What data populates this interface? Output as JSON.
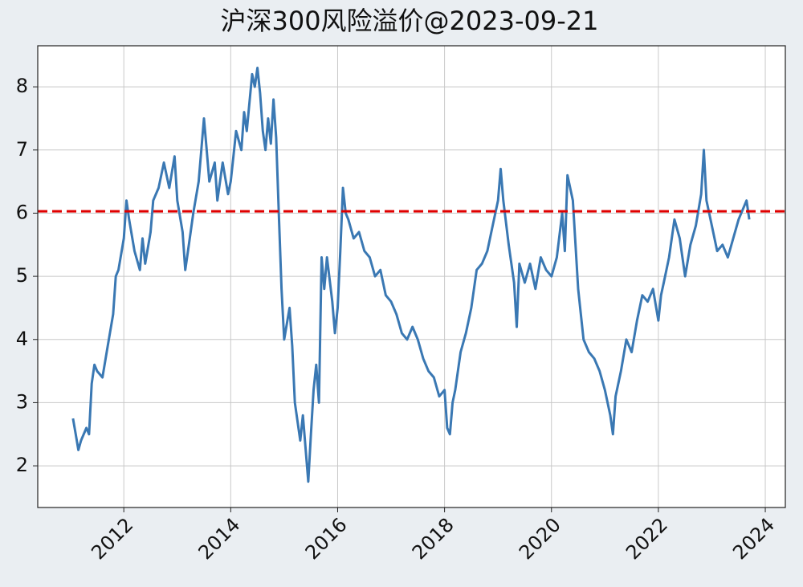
{
  "chart_data": {
    "type": "line",
    "title": "沪深300风险溢价@2023-09-21",
    "x": [
      2011.05,
      2011.1,
      2011.15,
      2011.2,
      2011.3,
      2011.35,
      2011.4,
      2011.45,
      2011.5,
      2011.6,
      2011.7,
      2011.8,
      2011.85,
      2011.9,
      2012.0,
      2012.05,
      2012.1,
      2012.2,
      2012.3,
      2012.35,
      2012.4,
      2012.5,
      2012.55,
      2012.65,
      2012.75,
      2012.85,
      2012.95,
      2013.0,
      2013.1,
      2013.15,
      2013.2,
      2013.3,
      2013.4,
      2013.5,
      2013.55,
      2013.6,
      2013.7,
      2013.75,
      2013.85,
      2013.95,
      2014.0,
      2014.05,
      2014.1,
      2014.2,
      2014.25,
      2014.3,
      2014.4,
      2014.45,
      2014.5,
      2014.55,
      2014.6,
      2014.65,
      2014.7,
      2014.75,
      2014.8,
      2014.85,
      2014.9,
      2014.95,
      2015.0,
      2015.1,
      2015.15,
      2015.2,
      2015.3,
      2015.35,
      2015.45,
      2015.5,
      2015.55,
      2015.6,
      2015.65,
      2015.7,
      2015.75,
      2015.8,
      2015.9,
      2015.95,
      2016.0,
      2016.05,
      2016.1,
      2016.15,
      2016.2,
      2016.3,
      2016.4,
      2016.5,
      2016.6,
      2016.7,
      2016.8,
      2016.9,
      2017.0,
      2017.1,
      2017.2,
      2017.3,
      2017.4,
      2017.5,
      2017.6,
      2017.7,
      2017.8,
      2017.9,
      2018.0,
      2018.05,
      2018.1,
      2018.15,
      2018.2,
      2018.3,
      2018.4,
      2018.5,
      2018.6,
      2018.7,
      2018.8,
      2018.9,
      2019.0,
      2019.05,
      2019.1,
      2019.2,
      2019.3,
      2019.35,
      2019.4,
      2019.5,
      2019.6,
      2019.7,
      2019.8,
      2019.9,
      2020.0,
      2020.1,
      2020.2,
      2020.25,
      2020.3,
      2020.4,
      2020.45,
      2020.5,
      2020.6,
      2020.7,
      2020.8,
      2020.9,
      2021.0,
      2021.1,
      2021.15,
      2021.2,
      2021.3,
      2021.4,
      2021.5,
      2021.6,
      2021.7,
      2021.8,
      2021.9,
      2022.0,
      2022.05,
      2022.1,
      2022.2,
      2022.3,
      2022.4,
      2022.5,
      2022.6,
      2022.7,
      2022.8,
      2022.85,
      2022.9,
      2023.0,
      2023.1,
      2023.2,
      2023.3,
      2023.4,
      2023.5,
      2023.6,
      2023.65,
      2023.7
    ],
    "series": [
      {
        "color": "#3a78b3",
        "values": [
          2.75,
          2.5,
          2.25,
          2.4,
          2.6,
          2.5,
          3.3,
          3.6,
          3.5,
          3.4,
          3.9,
          4.4,
          5.0,
          5.1,
          5.6,
          6.2,
          5.9,
          5.4,
          5.1,
          5.6,
          5.2,
          5.7,
          6.2,
          6.4,
          6.8,
          6.4,
          6.9,
          6.2,
          5.7,
          5.1,
          5.4,
          6.0,
          6.5,
          7.5,
          7.0,
          6.5,
          6.8,
          6.2,
          6.8,
          6.3,
          6.5,
          6.9,
          7.3,
          7.0,
          7.6,
          7.3,
          8.2,
          8.0,
          8.3,
          7.9,
          7.3,
          7.0,
          7.5,
          7.1,
          7.8,
          7.2,
          6.0,
          4.8,
          4.0,
          4.5,
          3.9,
          3.0,
          2.4,
          2.8,
          1.75,
          2.5,
          3.2,
          3.6,
          3.0,
          5.3,
          4.8,
          5.3,
          4.6,
          4.1,
          4.5,
          5.4,
          6.4,
          6.0,
          5.9,
          5.6,
          5.7,
          5.4,
          5.3,
          5.0,
          5.1,
          4.7,
          4.6,
          4.4,
          4.1,
          4.0,
          4.2,
          4.0,
          3.7,
          3.5,
          3.4,
          3.1,
          3.2,
          2.6,
          2.5,
          3.0,
          3.2,
          3.8,
          4.1,
          4.5,
          5.1,
          5.2,
          5.4,
          5.8,
          6.2,
          6.7,
          6.2,
          5.5,
          4.9,
          4.2,
          5.2,
          4.9,
          5.2,
          4.8,
          5.3,
          5.1,
          5.0,
          5.3,
          6.0,
          5.4,
          6.6,
          6.2,
          5.5,
          4.8,
          4.0,
          3.8,
          3.7,
          3.5,
          3.2,
          2.8,
          2.5,
          3.1,
          3.5,
          4.0,
          3.8,
          4.3,
          4.7,
          4.6,
          4.8,
          4.3,
          4.7,
          4.9,
          5.3,
          5.9,
          5.6,
          5.0,
          5.5,
          5.8,
          6.3,
          7.0,
          6.2,
          5.8,
          5.4,
          5.5,
          5.3,
          5.6,
          5.9,
          6.1,
          6.2,
          5.9
        ]
      }
    ],
    "hline": {
      "value": 6.03,
      "color": "#e00000"
    },
    "xlim": [
      2010.39,
      2024.375
    ],
    "xticks": [
      2012,
      2014,
      2016,
      2018,
      2020,
      2022,
      2024
    ],
    "ylim": [
      1.34,
      8.65
    ],
    "yticks": [
      2,
      3,
      4,
      5,
      6,
      7,
      8
    ],
    "grid": true
  }
}
